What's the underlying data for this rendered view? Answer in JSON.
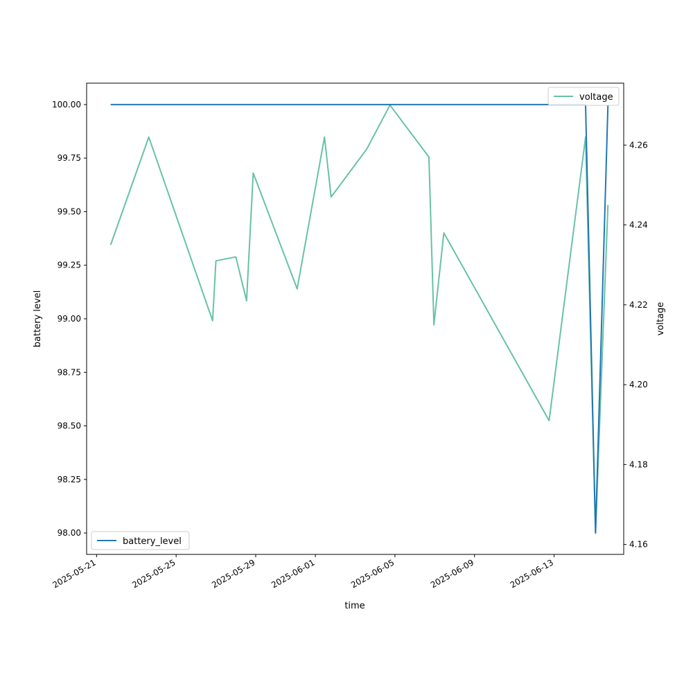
{
  "chart_data": {
    "type": "line",
    "xlabel": "time",
    "ylabel": "battery level",
    "ylabel_right": "voltage",
    "xlim": [
      "2025-05-20T12:00",
      "2025-06-16T12:00"
    ],
    "ylim": [
      97.9,
      100.1
    ],
    "ylim_right": [
      4.1575,
      4.2755
    ],
    "x_ticks": [
      "2025-05-21",
      "2025-05-25",
      "2025-05-29",
      "2025-06-01",
      "2025-06-05",
      "2025-06-09",
      "2025-06-13"
    ],
    "y_ticks": [
      "98.00",
      "98.25",
      "98.50",
      "98.75",
      "99.00",
      "99.25",
      "99.50",
      "99.75",
      "100.00"
    ],
    "y_ticks_right": [
      "4.16",
      "4.18",
      "4.20",
      "4.22",
      "4.24",
      "4.26"
    ],
    "grid": false,
    "series": [
      {
        "name": "battery_level",
        "axis": "left",
        "color": "#1f77b4",
        "legend_position": "lower-left",
        "points": [
          [
            "2025-05-21T17:00",
            100.0
          ],
          [
            "2025-06-14T14:00",
            100.0
          ],
          [
            "2025-06-15T02:00",
            98.0
          ],
          [
            "2025-06-15T17:00",
            100.0
          ]
        ]
      },
      {
        "name": "voltage",
        "axis": "right",
        "color": "#66c2a5",
        "legend_position": "upper-right",
        "points": [
          [
            "2025-05-21T17:00",
            4.235
          ],
          [
            "2025-05-23T15:00",
            4.262
          ],
          [
            "2025-05-26T20:00",
            4.216
          ],
          [
            "2025-05-27T00:00",
            4.231
          ],
          [
            "2025-05-28T00:00",
            4.232
          ],
          [
            "2025-05-28T13:00",
            4.221
          ],
          [
            "2025-05-28T21:00",
            4.253
          ],
          [
            "2025-05-31T02:00",
            4.224
          ],
          [
            "2025-06-01T11:00",
            4.262
          ],
          [
            "2025-06-01T19:00",
            4.247
          ],
          [
            "2025-06-03T14:00",
            4.259
          ],
          [
            "2025-06-04T18:00",
            4.27
          ],
          [
            "2025-06-06T17:00",
            4.257
          ],
          [
            "2025-06-06T23:00",
            4.215
          ],
          [
            "2025-06-07T11:00",
            4.238
          ],
          [
            "2025-06-12T18:00",
            4.191
          ],
          [
            "2025-06-14T14:00",
            4.262
          ],
          [
            "2025-06-15T02:00",
            4.163
          ],
          [
            "2025-06-15T17:00",
            4.245
          ]
        ]
      }
    ]
  }
}
